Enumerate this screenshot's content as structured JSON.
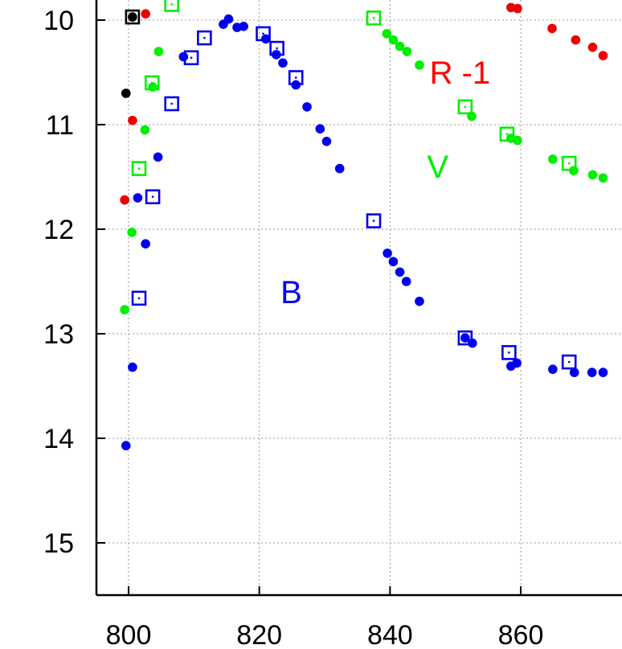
{
  "chart_data": {
    "type": "scatter",
    "title": "",
    "xlabel": "",
    "ylabel": "",
    "xlim": [
      795,
      873
    ],
    "ylim_inverted": [
      9.85,
      15.5
    ],
    "y_axis_inverted": true,
    "grid": true,
    "x_ticks": [
      "800",
      "820",
      "840",
      "860"
    ],
    "y_ticks": [
      "10",
      "11",
      "12",
      "13",
      "14",
      "15"
    ],
    "annotations": [
      {
        "text": "R -1",
        "x": 850.7,
        "y": 10.5,
        "color": "#ff0000"
      },
      {
        "text": "V",
        "x": 847.3,
        "y": 11.4,
        "color": "#00ee00"
      },
      {
        "text": "B",
        "x": 824.9,
        "y": 12.6,
        "color": "#0000ee"
      }
    ],
    "series": [
      {
        "marker": "filled-circle",
        "color": "#0000ee",
        "points": [
          [
            799.6,
            14.07
          ],
          [
            800.6,
            13.32
          ],
          [
            801.4,
            11.7
          ],
          [
            802.6,
            12.14
          ],
          [
            804.5,
            11.31
          ],
          [
            808.4,
            10.35
          ],
          [
            814.5,
            10.04
          ],
          [
            815.3,
            9.99
          ],
          [
            816.6,
            10.07
          ],
          [
            817.6,
            10.06
          ],
          [
            821.0,
            10.18
          ],
          [
            822.6,
            10.33
          ],
          [
            823.6,
            10.41
          ],
          [
            825.6,
            10.62
          ],
          [
            827.3,
            10.83
          ],
          [
            829.3,
            11.04
          ],
          [
            830.3,
            11.16
          ],
          [
            832.3,
            11.42
          ],
          [
            839.6,
            12.23
          ],
          [
            840.5,
            12.31
          ],
          [
            841.5,
            12.41
          ],
          [
            842.5,
            12.5
          ],
          [
            844.5,
            12.69
          ],
          [
            851.5,
            13.04
          ],
          [
            852.6,
            13.09
          ],
          [
            858.5,
            13.31
          ],
          [
            859.4,
            13.28
          ],
          [
            864.9,
            13.34
          ],
          [
            868.2,
            13.37
          ],
          [
            870.9,
            13.37
          ],
          [
            872.6,
            13.37
          ]
        ]
      },
      {
        "marker": "open-square",
        "color": "#0000ee",
        "points": [
          [
            801.6,
            12.66
          ],
          [
            803.7,
            11.69
          ],
          [
            806.6,
            10.8
          ],
          [
            809.6,
            10.36
          ],
          [
            811.6,
            10.17
          ],
          [
            820.6,
            10.13
          ],
          [
            822.7,
            10.27
          ],
          [
            825.6,
            10.55
          ],
          [
            837.5,
            11.92
          ],
          [
            851.5,
            13.04
          ],
          [
            858.2,
            13.18
          ],
          [
            867.4,
            13.27
          ]
        ]
      },
      {
        "marker": "filled-circle",
        "color": "#00ee00",
        "points": [
          [
            799.4,
            12.77
          ],
          [
            800.5,
            12.03
          ],
          [
            802.5,
            11.05
          ],
          [
            803.7,
            10.64
          ],
          [
            804.6,
            10.3
          ],
          [
            839.5,
            10.13
          ],
          [
            840.5,
            10.19
          ],
          [
            841.5,
            10.25
          ],
          [
            842.6,
            10.3
          ],
          [
            844.5,
            10.43
          ],
          [
            852.5,
            10.92
          ],
          [
            858.5,
            11.13
          ],
          [
            859.5,
            11.15
          ],
          [
            864.9,
            11.33
          ],
          [
            868.1,
            11.44
          ],
          [
            871.0,
            11.48
          ],
          [
            872.6,
            11.51
          ]
        ]
      },
      {
        "marker": "open-square",
        "color": "#00ee00",
        "points": [
          [
            801.6,
            11.42
          ],
          [
            803.6,
            10.6
          ],
          [
            806.6,
            9.85
          ],
          [
            837.5,
            9.98
          ],
          [
            851.5,
            10.83
          ],
          [
            857.9,
            11.09
          ],
          [
            867.4,
            11.37
          ]
        ]
      },
      {
        "marker": "filled-circle",
        "color": "#ee0000",
        "points": [
          [
            799.4,
            11.72
          ],
          [
            800.6,
            10.96
          ],
          [
            802.6,
            9.94
          ],
          [
            858.5,
            9.88
          ],
          [
            859.5,
            9.89
          ],
          [
            864.8,
            10.08
          ],
          [
            868.4,
            10.19
          ],
          [
            871.0,
            10.26
          ],
          [
            872.6,
            10.34
          ]
        ]
      },
      {
        "marker": "filled-circle",
        "color": "#000000",
        "points": [
          [
            799.6,
            10.7
          ],
          [
            800.6,
            9.97
          ]
        ]
      },
      {
        "marker": "open-square",
        "color": "#000000",
        "points": [
          [
            800.6,
            9.97
          ]
        ]
      }
    ]
  }
}
